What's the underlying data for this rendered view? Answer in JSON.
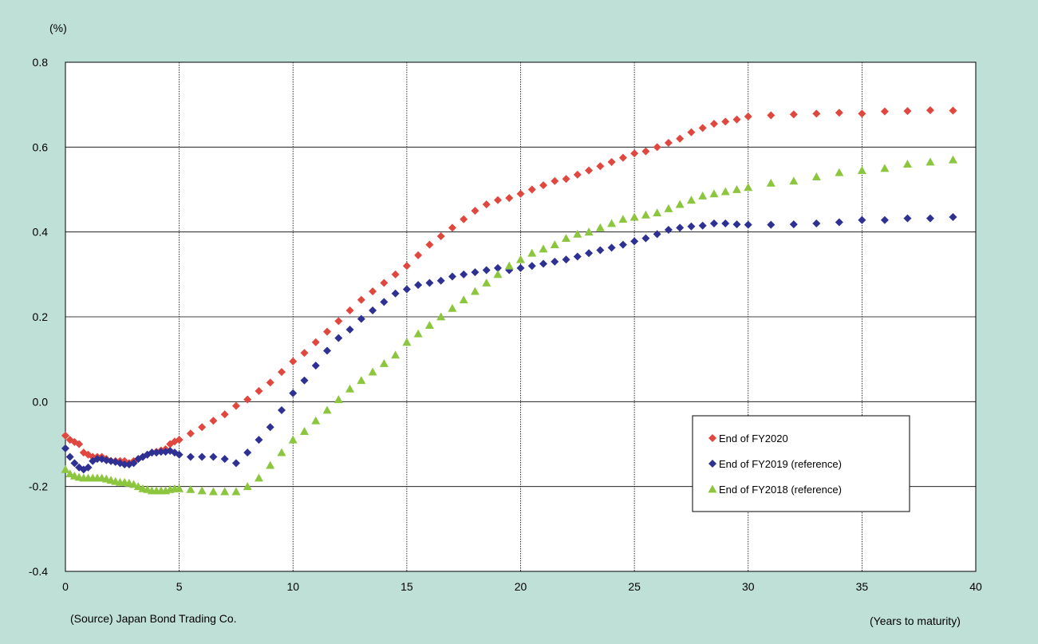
{
  "chart_data": {
    "type": "scatter",
    "yunit_label": "(%)",
    "xlabel": "(Years to maturity)",
    "source_note": "(Source) Japan Bond Trading Co.",
    "xlim": [
      0,
      40
    ],
    "ylim": [
      -0.4,
      0.8
    ],
    "xticks": [
      "0",
      "5",
      "10",
      "15",
      "20",
      "25",
      "30",
      "35",
      "40"
    ],
    "yticks": [
      "-0.4",
      "-0.2",
      "0.0",
      "0.2",
      "0.4",
      "0.6",
      "0.8"
    ],
    "grid": "x dotted vertical, y solid horizontal",
    "legend_position": "right-center",
    "series": [
      {
        "name": "End of FY2020",
        "marker": "diamond",
        "color": "#e0473e",
        "points": [
          [
            0.0,
            -0.08
          ],
          [
            0.2,
            -0.09
          ],
          [
            0.4,
            -0.095
          ],
          [
            0.6,
            -0.1
          ],
          [
            0.8,
            -0.12
          ],
          [
            1.0,
            -0.125
          ],
          [
            1.2,
            -0.13
          ],
          [
            1.4,
            -0.13
          ],
          [
            1.6,
            -0.13
          ],
          [
            1.8,
            -0.135
          ],
          [
            2.0,
            -0.14
          ],
          [
            2.2,
            -0.14
          ],
          [
            2.4,
            -0.14
          ],
          [
            2.6,
            -0.14
          ],
          [
            2.8,
            -0.145
          ],
          [
            3.0,
            -0.14
          ],
          [
            3.2,
            -0.135
          ],
          [
            3.4,
            -0.13
          ],
          [
            3.6,
            -0.125
          ],
          [
            3.8,
            -0.12
          ],
          [
            4.0,
            -0.118
          ],
          [
            4.2,
            -0.115
          ],
          [
            4.4,
            -0.112
          ],
          [
            4.6,
            -0.1
          ],
          [
            4.8,
            -0.094
          ],
          [
            5.0,
            -0.09
          ],
          [
            5.5,
            -0.075
          ],
          [
            6.0,
            -0.06
          ],
          [
            6.5,
            -0.045
          ],
          [
            7.0,
            -0.03
          ],
          [
            7.5,
            -0.01
          ],
          [
            8.0,
            0.005
          ],
          [
            8.5,
            0.025
          ],
          [
            9.0,
            0.045
          ],
          [
            9.5,
            0.07
          ],
          [
            10.0,
            0.095
          ],
          [
            10.5,
            0.115
          ],
          [
            11.0,
            0.14
          ],
          [
            11.5,
            0.165
          ],
          [
            12.0,
            0.19
          ],
          [
            12.5,
            0.215
          ],
          [
            13.0,
            0.24
          ],
          [
            13.5,
            0.26
          ],
          [
            14.0,
            0.28
          ],
          [
            14.5,
            0.3
          ],
          [
            15.0,
            0.32
          ],
          [
            15.5,
            0.345
          ],
          [
            16.0,
            0.37
          ],
          [
            16.5,
            0.39
          ],
          [
            17.0,
            0.41
          ],
          [
            17.5,
            0.43
          ],
          [
            18.0,
            0.45
          ],
          [
            18.5,
            0.465
          ],
          [
            19.0,
            0.475
          ],
          [
            19.5,
            0.48
          ],
          [
            20.0,
            0.49
          ],
          [
            20.5,
            0.5
          ],
          [
            21.0,
            0.51
          ],
          [
            21.5,
            0.52
          ],
          [
            22.0,
            0.525
          ],
          [
            22.5,
            0.535
          ],
          [
            23.0,
            0.545
          ],
          [
            23.5,
            0.555
          ],
          [
            24.0,
            0.565
          ],
          [
            24.5,
            0.575
          ],
          [
            25.0,
            0.585
          ],
          [
            25.5,
            0.59
          ],
          [
            26.0,
            0.6
          ],
          [
            26.5,
            0.61
          ],
          [
            27.0,
            0.62
          ],
          [
            27.5,
            0.635
          ],
          [
            28.0,
            0.645
          ],
          [
            28.5,
            0.655
          ],
          [
            29.0,
            0.66
          ],
          [
            29.5,
            0.665
          ],
          [
            30.0,
            0.672
          ],
          [
            31,
            0.675
          ],
          [
            32,
            0.677
          ],
          [
            33,
            0.679
          ],
          [
            34,
            0.681
          ],
          [
            35,
            0.679
          ],
          [
            36,
            0.684
          ],
          [
            37,
            0.685
          ],
          [
            38,
            0.687
          ],
          [
            39,
            0.686
          ]
        ]
      },
      {
        "name": "End of FY2019 (reference)",
        "marker": "diamond",
        "color": "#2e3192",
        "points": [
          [
            0.0,
            -0.11
          ],
          [
            0.2,
            -0.13
          ],
          [
            0.4,
            -0.145
          ],
          [
            0.6,
            -0.155
          ],
          [
            0.8,
            -0.16
          ],
          [
            1.0,
            -0.155
          ],
          [
            1.2,
            -0.14
          ],
          [
            1.4,
            -0.135
          ],
          [
            1.6,
            -0.135
          ],
          [
            1.8,
            -0.138
          ],
          [
            2.0,
            -0.14
          ],
          [
            2.2,
            -0.142
          ],
          [
            2.4,
            -0.145
          ],
          [
            2.6,
            -0.148
          ],
          [
            2.8,
            -0.148
          ],
          [
            3.0,
            -0.145
          ],
          [
            3.2,
            -0.135
          ],
          [
            3.4,
            -0.13
          ],
          [
            3.6,
            -0.125
          ],
          [
            3.8,
            -0.12
          ],
          [
            4.0,
            -0.12
          ],
          [
            4.2,
            -0.118
          ],
          [
            4.4,
            -0.118
          ],
          [
            4.6,
            -0.116
          ],
          [
            4.8,
            -0.12
          ],
          [
            5.0,
            -0.125
          ],
          [
            5.5,
            -0.13
          ],
          [
            6.0,
            -0.13
          ],
          [
            6.5,
            -0.13
          ],
          [
            7.0,
            -0.135
          ],
          [
            7.5,
            -0.145
          ],
          [
            8.0,
            -0.12
          ],
          [
            8.5,
            -0.09
          ],
          [
            9.0,
            -0.06
          ],
          [
            9.5,
            -0.02
          ],
          [
            10.0,
            0.02
          ],
          [
            10.5,
            0.05
          ],
          [
            11.0,
            0.085
          ],
          [
            11.5,
            0.12
          ],
          [
            12.0,
            0.15
          ],
          [
            12.5,
            0.17
          ],
          [
            13.0,
            0.195
          ],
          [
            13.5,
            0.215
          ],
          [
            14.0,
            0.235
          ],
          [
            14.5,
            0.255
          ],
          [
            15.0,
            0.265
          ],
          [
            15.5,
            0.275
          ],
          [
            16.0,
            0.28
          ],
          [
            16.5,
            0.285
          ],
          [
            17.0,
            0.295
          ],
          [
            17.5,
            0.3
          ],
          [
            18.0,
            0.305
          ],
          [
            18.5,
            0.31
          ],
          [
            19.0,
            0.315
          ],
          [
            19.5,
            0.31
          ],
          [
            20.0,
            0.315
          ],
          [
            20.5,
            0.32
          ],
          [
            21.0,
            0.325
          ],
          [
            21.5,
            0.33
          ],
          [
            22.0,
            0.335
          ],
          [
            22.5,
            0.342
          ],
          [
            23.0,
            0.35
          ],
          [
            23.5,
            0.357
          ],
          [
            24.0,
            0.363
          ],
          [
            24.5,
            0.37
          ],
          [
            25.0,
            0.378
          ],
          [
            25.5,
            0.385
          ],
          [
            26.0,
            0.395
          ],
          [
            26.5,
            0.405
          ],
          [
            27.0,
            0.41
          ],
          [
            27.5,
            0.413
          ],
          [
            28.0,
            0.415
          ],
          [
            28.5,
            0.42
          ],
          [
            29.0,
            0.42
          ],
          [
            29.5,
            0.418
          ],
          [
            30.0,
            0.417
          ],
          [
            31,
            0.417
          ],
          [
            32,
            0.418
          ],
          [
            33,
            0.42
          ],
          [
            34,
            0.423
          ],
          [
            35,
            0.428
          ],
          [
            36,
            0.428
          ],
          [
            37,
            0.432
          ],
          [
            38,
            0.432
          ],
          [
            39,
            0.435
          ]
        ]
      },
      {
        "name": "End of FY2018 (reference)",
        "marker": "triangle",
        "color": "#8cc63e",
        "points": [
          [
            0.0,
            -0.16
          ],
          [
            0.2,
            -0.17
          ],
          [
            0.4,
            -0.175
          ],
          [
            0.6,
            -0.178
          ],
          [
            0.8,
            -0.18
          ],
          [
            1.0,
            -0.18
          ],
          [
            1.2,
            -0.18
          ],
          [
            1.4,
            -0.18
          ],
          [
            1.6,
            -0.18
          ],
          [
            1.8,
            -0.182
          ],
          [
            2.0,
            -0.185
          ],
          [
            2.2,
            -0.188
          ],
          [
            2.4,
            -0.19
          ],
          [
            2.6,
            -0.19
          ],
          [
            2.8,
            -0.192
          ],
          [
            3.0,
            -0.195
          ],
          [
            3.2,
            -0.2
          ],
          [
            3.4,
            -0.205
          ],
          [
            3.6,
            -0.207
          ],
          [
            3.8,
            -0.21
          ],
          [
            4.0,
            -0.21
          ],
          [
            4.2,
            -0.21
          ],
          [
            4.4,
            -0.21
          ],
          [
            4.6,
            -0.207
          ],
          [
            4.8,
            -0.205
          ],
          [
            5.0,
            -0.205
          ],
          [
            5.5,
            -0.207
          ],
          [
            6.0,
            -0.21
          ],
          [
            6.5,
            -0.212
          ],
          [
            7.0,
            -0.212
          ],
          [
            7.5,
            -0.212
          ],
          [
            8.0,
            -0.2
          ],
          [
            8.5,
            -0.18
          ],
          [
            9.0,
            -0.15
          ],
          [
            9.5,
            -0.12
          ],
          [
            10.0,
            -0.09
          ],
          [
            10.5,
            -0.07
          ],
          [
            11.0,
            -0.045
          ],
          [
            11.5,
            -0.02
          ],
          [
            12.0,
            0.005
          ],
          [
            12.5,
            0.03
          ],
          [
            13.0,
            0.05
          ],
          [
            13.5,
            0.07
          ],
          [
            14.0,
            0.09
          ],
          [
            14.5,
            0.11
          ],
          [
            15.0,
            0.14
          ],
          [
            15.5,
            0.16
          ],
          [
            16.0,
            0.18
          ],
          [
            16.5,
            0.2
          ],
          [
            17.0,
            0.22
          ],
          [
            17.5,
            0.24
          ],
          [
            18.0,
            0.26
          ],
          [
            18.5,
            0.28
          ],
          [
            19.0,
            0.3
          ],
          [
            19.5,
            0.32
          ],
          [
            20.0,
            0.335
          ],
          [
            20.5,
            0.35
          ],
          [
            21.0,
            0.36
          ],
          [
            21.5,
            0.37
          ],
          [
            22.0,
            0.385
          ],
          [
            22.5,
            0.395
          ],
          [
            23.0,
            0.4
          ],
          [
            23.5,
            0.41
          ],
          [
            24.0,
            0.42
          ],
          [
            24.5,
            0.43
          ],
          [
            25.0,
            0.435
          ],
          [
            25.5,
            0.44
          ],
          [
            26.0,
            0.445
          ],
          [
            26.5,
            0.455
          ],
          [
            27.0,
            0.465
          ],
          [
            27.5,
            0.475
          ],
          [
            28.0,
            0.485
          ],
          [
            28.5,
            0.49
          ],
          [
            29.0,
            0.495
          ],
          [
            29.5,
            0.5
          ],
          [
            30.0,
            0.505
          ],
          [
            31,
            0.515
          ],
          [
            32,
            0.52
          ],
          [
            33,
            0.53
          ],
          [
            34,
            0.54
          ],
          [
            35,
            0.545
          ],
          [
            36,
            0.55
          ],
          [
            37,
            0.56
          ],
          [
            38,
            0.565
          ],
          [
            39,
            0.57
          ]
        ]
      }
    ]
  }
}
